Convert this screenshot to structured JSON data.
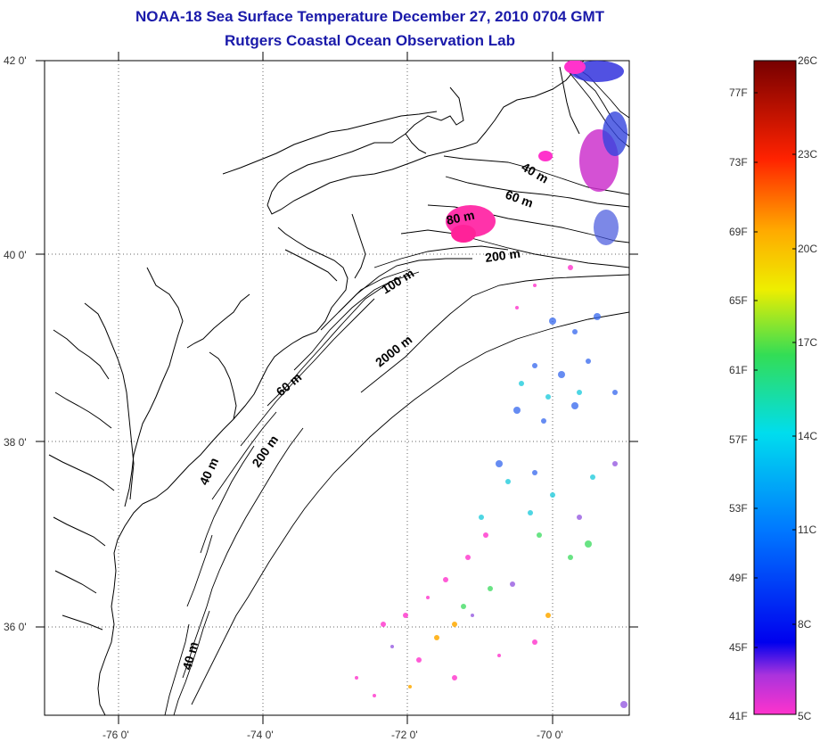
{
  "title": "NOAA-18 Sea Surface Temperature December 27, 2010 0704 GMT",
  "subtitle": "Rutgers Coastal Ocean Observation Lab",
  "lat_labels": [
    "42 0'",
    "40 0'",
    "38 0'",
    "36 0'"
  ],
  "lon_labels": [
    "-76 0'",
    "-74 0'",
    "-72 0'",
    "-70 0'"
  ],
  "contours": {
    "c40_upper": "40 m",
    "c60_upper": "60 m",
    "c80": "80 m",
    "c200_upper": "200 m",
    "c100": "100 m",
    "c2000": "2000 m",
    "c60_lower": "60 m",
    "c200_lower": "200 m",
    "c40_mid": "40 m",
    "c40_lower": "40 m"
  },
  "colorbar": {
    "f_labels": [
      "77F",
      "73F",
      "69F",
      "65F",
      "61F",
      "57F",
      "53F",
      "49F",
      "45F",
      "41F"
    ],
    "c_labels": [
      "26C",
      "23C",
      "20C",
      "17C",
      "14C",
      "11C",
      "8C",
      "5C"
    ],
    "colors": [
      "#ff33cc",
      "#7733dd",
      "#0000ee",
      "#0077ff",
      "#00ddee",
      "#33dd77",
      "#eeee00",
      "#ffaa00",
      "#ff3300",
      "#770000"
    ]
  }
}
